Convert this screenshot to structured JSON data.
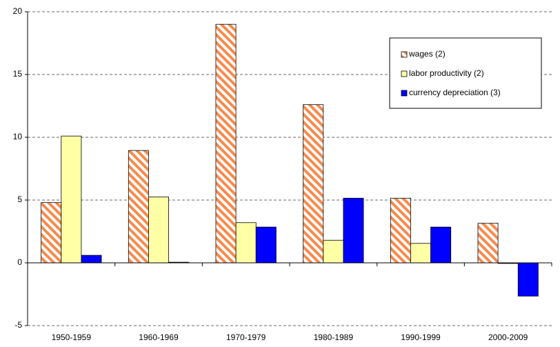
{
  "chart_data": {
    "type": "bar",
    "categories": [
      "1950-1959",
      "1960-1969",
      "1970-1979",
      "1980-1989",
      "1990-1999",
      "2000-2009"
    ],
    "series": [
      {
        "name": "wages (2)",
        "color": "#f58a4b",
        "pattern": "stripes",
        "values": [
          4.8,
          8.95,
          19.0,
          12.6,
          5.15,
          3.15
        ]
      },
      {
        "name": "labor productivity (2)",
        "color": "#ffffa6",
        "values": [
          10.1,
          5.25,
          3.2,
          1.8,
          1.55,
          -0.05
        ]
      },
      {
        "name": "currency depreciation (3)",
        "color": "#0000ff",
        "values": [
          0.6,
          0.05,
          2.85,
          5.15,
          2.85,
          -2.65
        ]
      }
    ],
    "ylim": [
      -5,
      20
    ],
    "yticks": [
      -5,
      0,
      5,
      10,
      15,
      20
    ],
    "grid": true,
    "legend": "top-right"
  }
}
